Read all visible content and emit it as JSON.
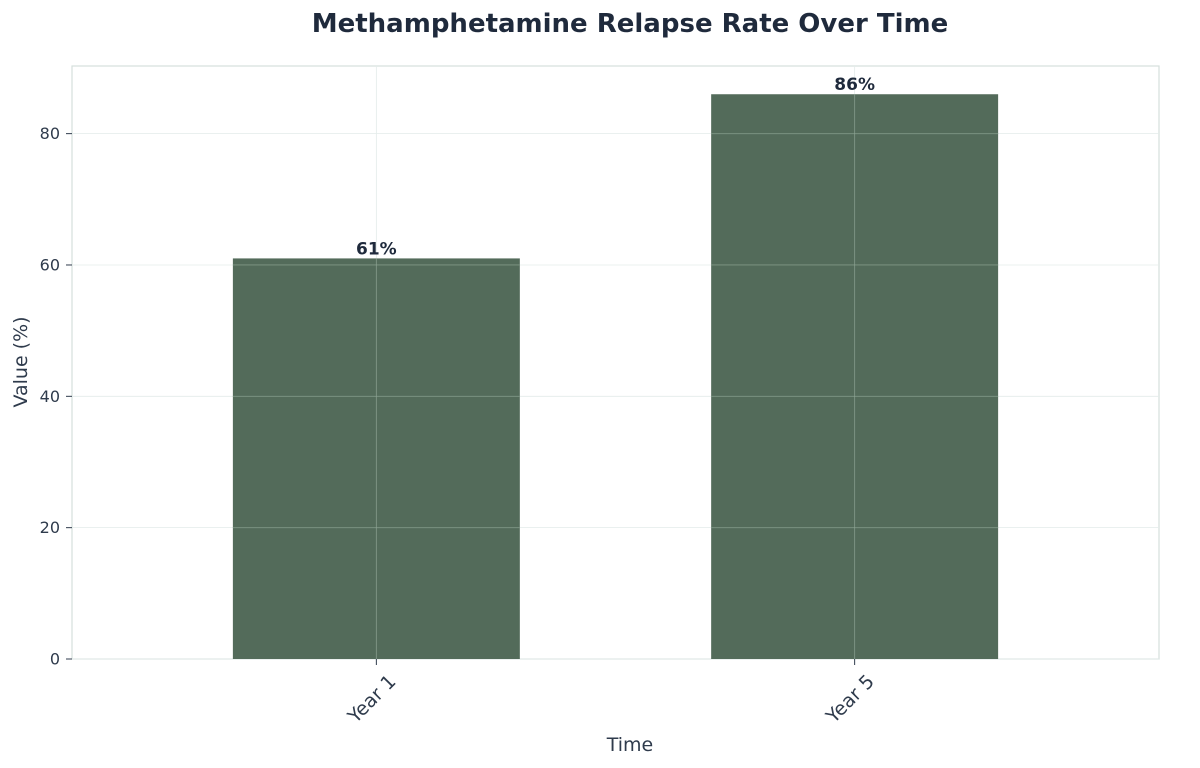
{
  "colors": {
    "bar": "#536b5a",
    "text": "#1f2a3c",
    "grid": "#e4ecea",
    "axes": "#d5dfdd",
    "overlay_grid": "#8fa595"
  },
  "chart_data": {
    "type": "bar",
    "title": "Methamphetamine Relapse Rate Over Time",
    "xlabel": "Time",
    "ylabel": "Value (%)",
    "categories": [
      "Year 1",
      "Year 5"
    ],
    "values": [
      61,
      86
    ],
    "data_labels": [
      "61%",
      "86%"
    ],
    "ylim": [
      0,
      90.3
    ],
    "yticks": [
      0,
      20,
      40,
      60,
      80
    ],
    "grid": true,
    "legend": "none",
    "x_tick_rotation_deg": 45
  }
}
